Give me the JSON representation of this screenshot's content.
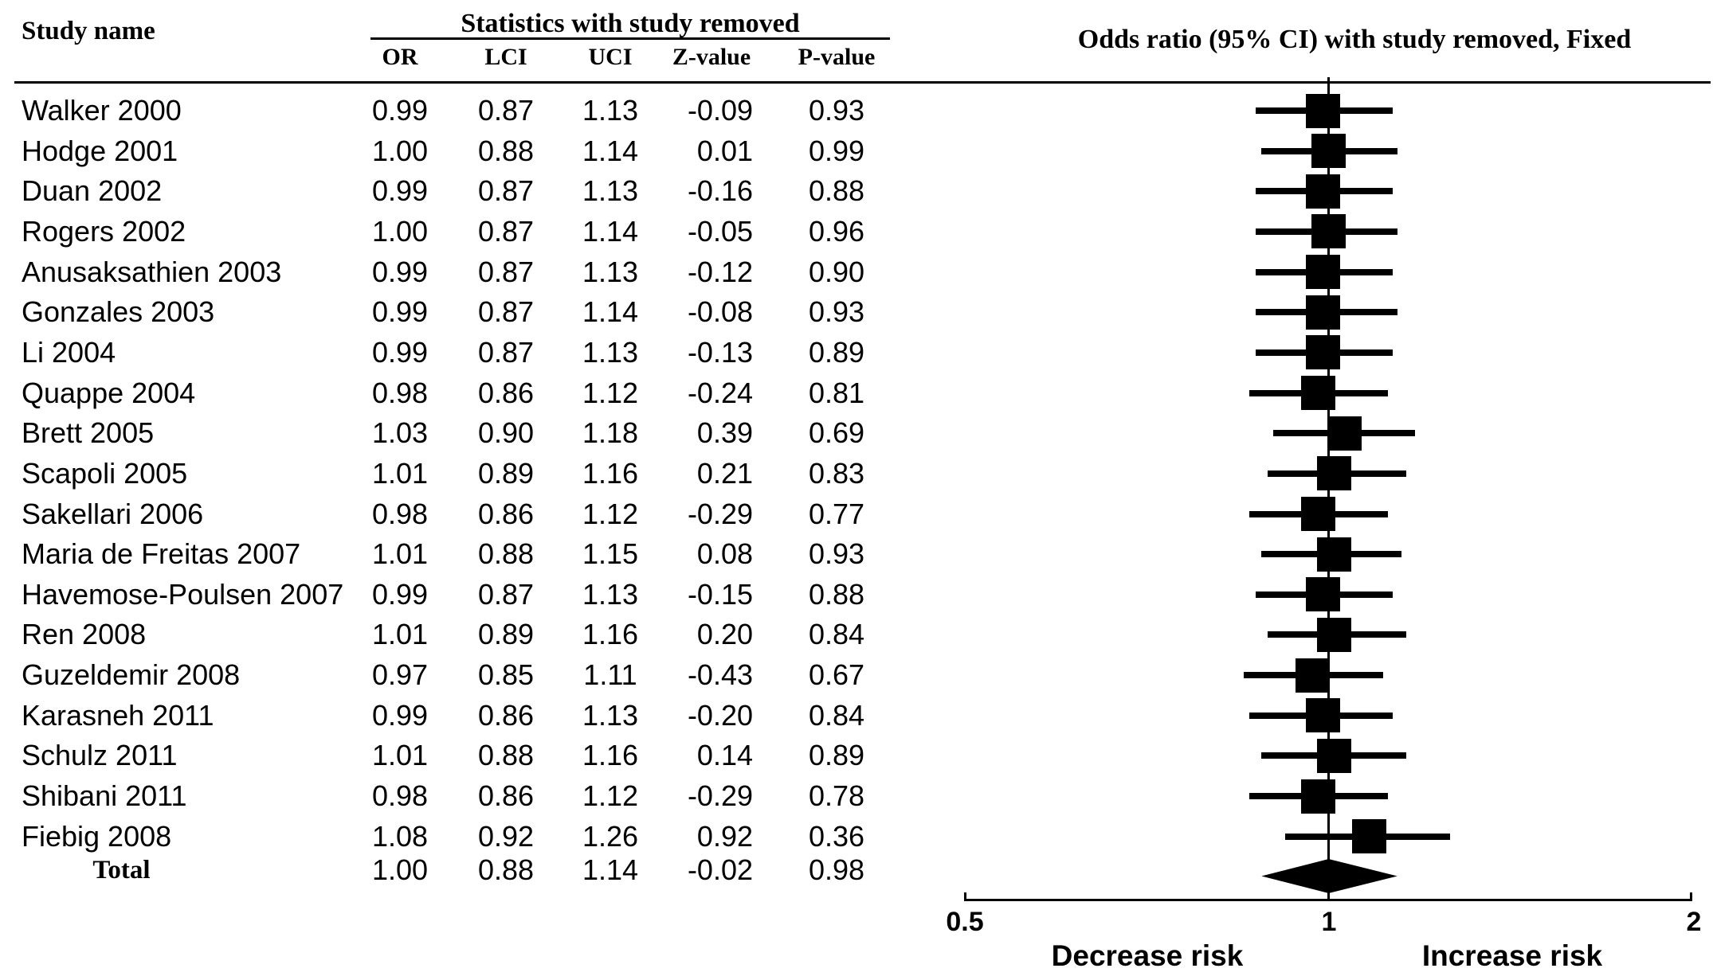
{
  "figure": {
    "study_column_header": "Study name",
    "stats_group_header": "Statistics with study removed"
  },
  "chart_data": {
    "type": "scatter",
    "variant": "forest-plot-leave-one-out",
    "title": "Odds ratio (95% CI) with study removed, Fixed",
    "x_scale": "log",
    "xlim": [
      0.5,
      2
    ],
    "x_ticks": [
      {
        "label": "0.5",
        "value": 0.5
      },
      {
        "label": "1",
        "value": 1
      },
      {
        "label": "2",
        "value": 2
      }
    ],
    "x_axis_annotations": {
      "left": "Decrease risk",
      "right": "Increase risk"
    },
    "marker": "square",
    "summary_marker": "diamond",
    "grid": false,
    "legend": false,
    "columns": [
      "OR",
      "LCI",
      "UCI",
      "Z-value",
      "P-value"
    ],
    "studies": [
      {
        "name": "Walker 2000",
        "or": "0.99",
        "lci": "0.87",
        "uci": "1.13",
        "z": "-0.09",
        "p": "0.93"
      },
      {
        "name": "Hodge 2001",
        "or": "1.00",
        "lci": "0.88",
        "uci": "1.14",
        "z": "0.01",
        "p": "0.99"
      },
      {
        "name": "Duan 2002",
        "or": "0.99",
        "lci": "0.87",
        "uci": "1.13",
        "z": "-0.16",
        "p": "0.88"
      },
      {
        "name": "Rogers 2002",
        "or": "1.00",
        "lci": "0.87",
        "uci": "1.14",
        "z": "-0.05",
        "p": "0.96"
      },
      {
        "name": "Anusaksathien 2003",
        "or": "0.99",
        "lci": "0.87",
        "uci": "1.13",
        "z": "-0.12",
        "p": "0.90"
      },
      {
        "name": "Gonzales 2003",
        "or": "0.99",
        "lci": "0.87",
        "uci": "1.14",
        "z": "-0.08",
        "p": "0.93"
      },
      {
        "name": "Li 2004",
        "or": "0.99",
        "lci": "0.87",
        "uci": "1.13",
        "z": "-0.13",
        "p": "0.89"
      },
      {
        "name": "Quappe 2004",
        "or": "0.98",
        "lci": "0.86",
        "uci": "1.12",
        "z": "-0.24",
        "p": "0.81"
      },
      {
        "name": "Brett 2005",
        "or": "1.03",
        "lci": "0.90",
        "uci": "1.18",
        "z": "0.39",
        "p": "0.69"
      },
      {
        "name": "Scapoli 2005",
        "or": "1.01",
        "lci": "0.89",
        "uci": "1.16",
        "z": "0.21",
        "p": "0.83"
      },
      {
        "name": "Sakellari 2006",
        "or": "0.98",
        "lci": "0.86",
        "uci": "1.12",
        "z": "-0.29",
        "p": "0.77"
      },
      {
        "name": "Maria de Freitas 2007",
        "or": "1.01",
        "lci": "0.88",
        "uci": "1.15",
        "z": "0.08",
        "p": "0.93"
      },
      {
        "name": "Havemose-Poulsen 2007",
        "or": "0.99",
        "lci": "0.87",
        "uci": "1.13",
        "z": "-0.15",
        "p": "0.88"
      },
      {
        "name": "Ren 2008",
        "or": "1.01",
        "lci": "0.89",
        "uci": "1.16",
        "z": "0.20",
        "p": "0.84"
      },
      {
        "name": "Guzeldemir 2008",
        "or": "0.97",
        "lci": "0.85",
        "uci": "1.11",
        "z": "-0.43",
        "p": "0.67"
      },
      {
        "name": "Karasneh 2011",
        "or": "0.99",
        "lci": "0.86",
        "uci": "1.13",
        "z": "-0.20",
        "p": "0.84"
      },
      {
        "name": "Schulz 2011",
        "or": "1.01",
        "lci": "0.88",
        "uci": "1.16",
        "z": "0.14",
        "p": "0.89"
      },
      {
        "name": "Shibani 2011",
        "or": "0.98",
        "lci": "0.86",
        "uci": "1.12",
        "z": "-0.29",
        "p": "0.78"
      },
      {
        "name": "Fiebig 2008",
        "or": "1.08",
        "lci": "0.92",
        "uci": "1.26",
        "z": "0.92",
        "p": "0.36"
      }
    ],
    "total": {
      "name": "Total",
      "or": "1.00",
      "lci": "0.88",
      "uci": "1.14",
      "z": "-0.02",
      "p": "0.98"
    }
  }
}
